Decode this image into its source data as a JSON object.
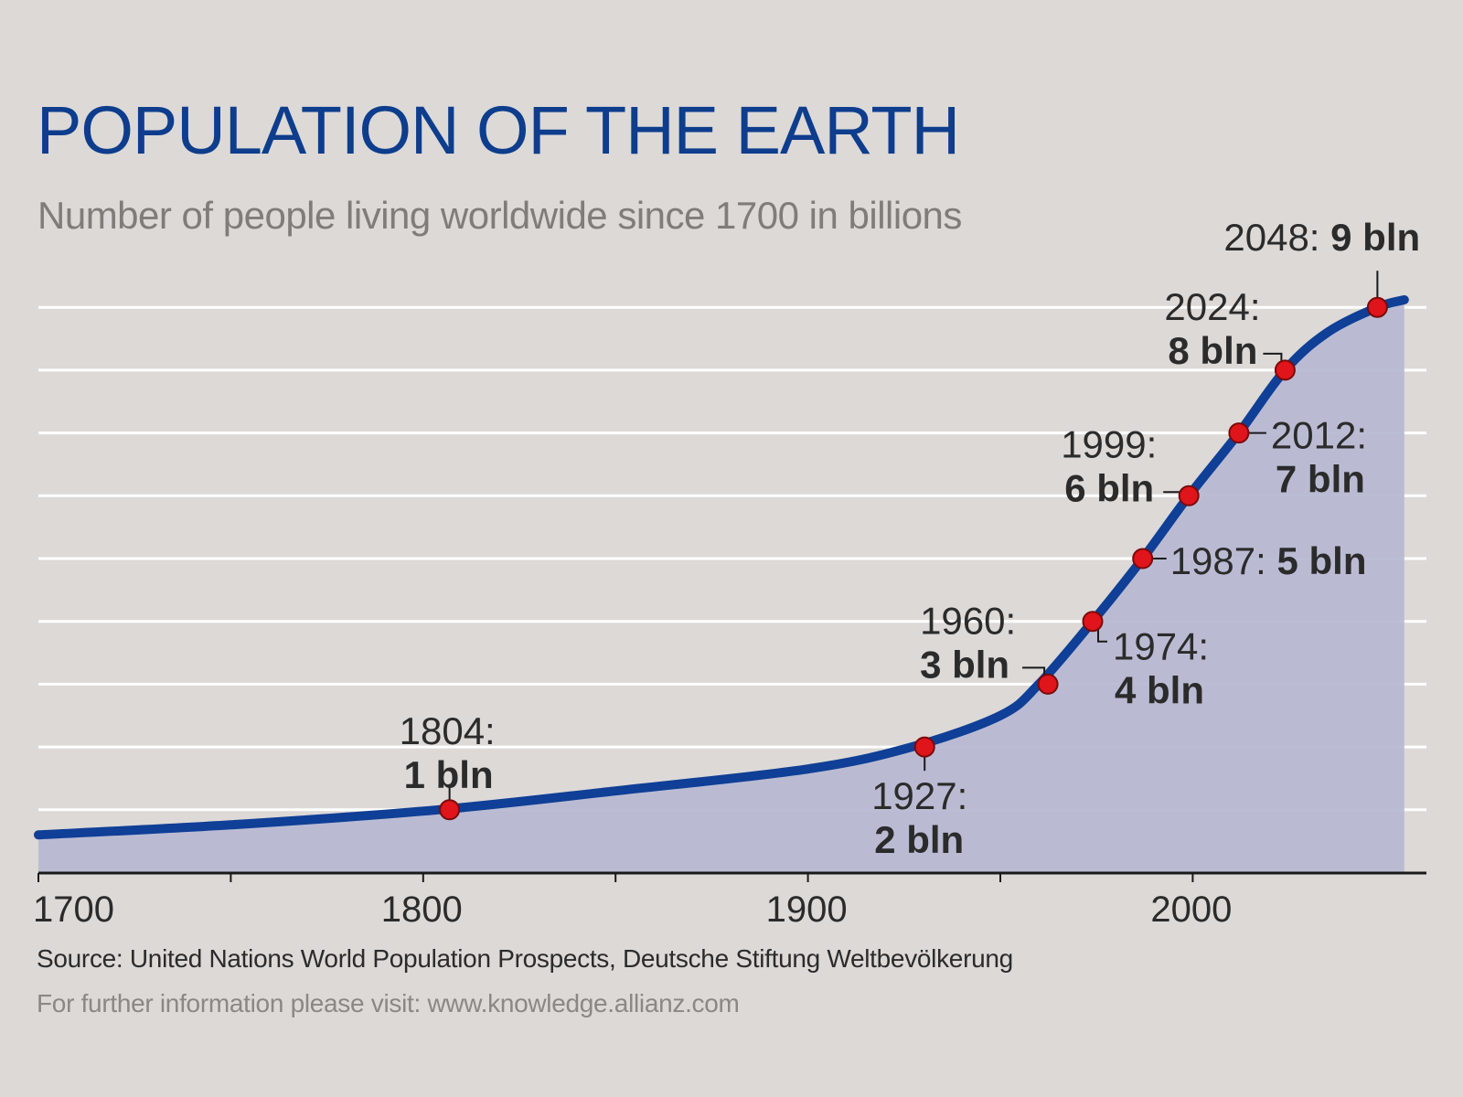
{
  "title": "POPULATION OF THE EARTH",
  "subtitle": "Number of people living worldwide since 1700 in billions",
  "footer": {
    "source": "Source: United Nations World Population Prospects, Deutsche Stiftung Weltbevölkerung",
    "info": "For further information please visit:  www.knowledge.allianz.com"
  },
  "colors": {
    "background": "#dcd9d7",
    "title": "#0d3d8c",
    "line": "#0f3f96",
    "area": "#b7b9d3",
    "marker": "#e0141b",
    "gridline": "#ffffff"
  },
  "chart_data": {
    "type": "area",
    "title": "POPULATION OF THE EARTH",
    "subtitle": "Number of people living worldwide since 1700 in billions",
    "xlabel": "",
    "ylabel": "billions",
    "xlim": [
      1700,
      2052
    ],
    "ylim": [
      0,
      9.7
    ],
    "grid": true,
    "x_ticks": [
      "1700",
      "1800",
      "1900",
      "2000"
    ],
    "x_minor_ticks": [
      1750,
      1850,
      1950
    ],
    "y_gridlines": [
      1,
      2,
      3,
      4,
      5,
      6,
      7,
      8,
      9
    ],
    "series": [
      {
        "name": "World population",
        "x": [
          1700,
          1750,
          1804,
          1850,
          1900,
          1927,
          1950,
          1960,
          1974,
          1987,
          1999,
          2012,
          2024,
          2035,
          2048,
          2055
        ],
        "values": [
          0.6,
          0.76,
          1.0,
          1.3,
          1.65,
          2.0,
          2.5,
          3.0,
          4.0,
          5.0,
          6.0,
          7.0,
          8.0,
          8.6,
          9.0,
          9.12
        ]
      }
    ],
    "annotations": [
      {
        "year": "1804:",
        "value": "1 bln",
        "x": 1804,
        "y": 1
      },
      {
        "year": "1927:",
        "value": "2 bln",
        "x": 1927,
        "y": 2
      },
      {
        "year": "1960:",
        "value": "3 bln",
        "x": 1960,
        "y": 3
      },
      {
        "year": "1974:",
        "value": "4 bln",
        "x": 1974,
        "y": 4
      },
      {
        "year": "1987:",
        "value": "5 bln",
        "x": 1987,
        "y": 5
      },
      {
        "year": "1999:",
        "value": "6 bln",
        "x": 1999,
        "y": 6
      },
      {
        "year": "2012:",
        "value": "7 bln",
        "x": 2012,
        "y": 7
      },
      {
        "year": "2024:",
        "value": "8 bln",
        "x": 2024,
        "y": 8
      },
      {
        "year": "2048:",
        "value": "9 bln",
        "x": 2048,
        "y": 9
      }
    ]
  }
}
